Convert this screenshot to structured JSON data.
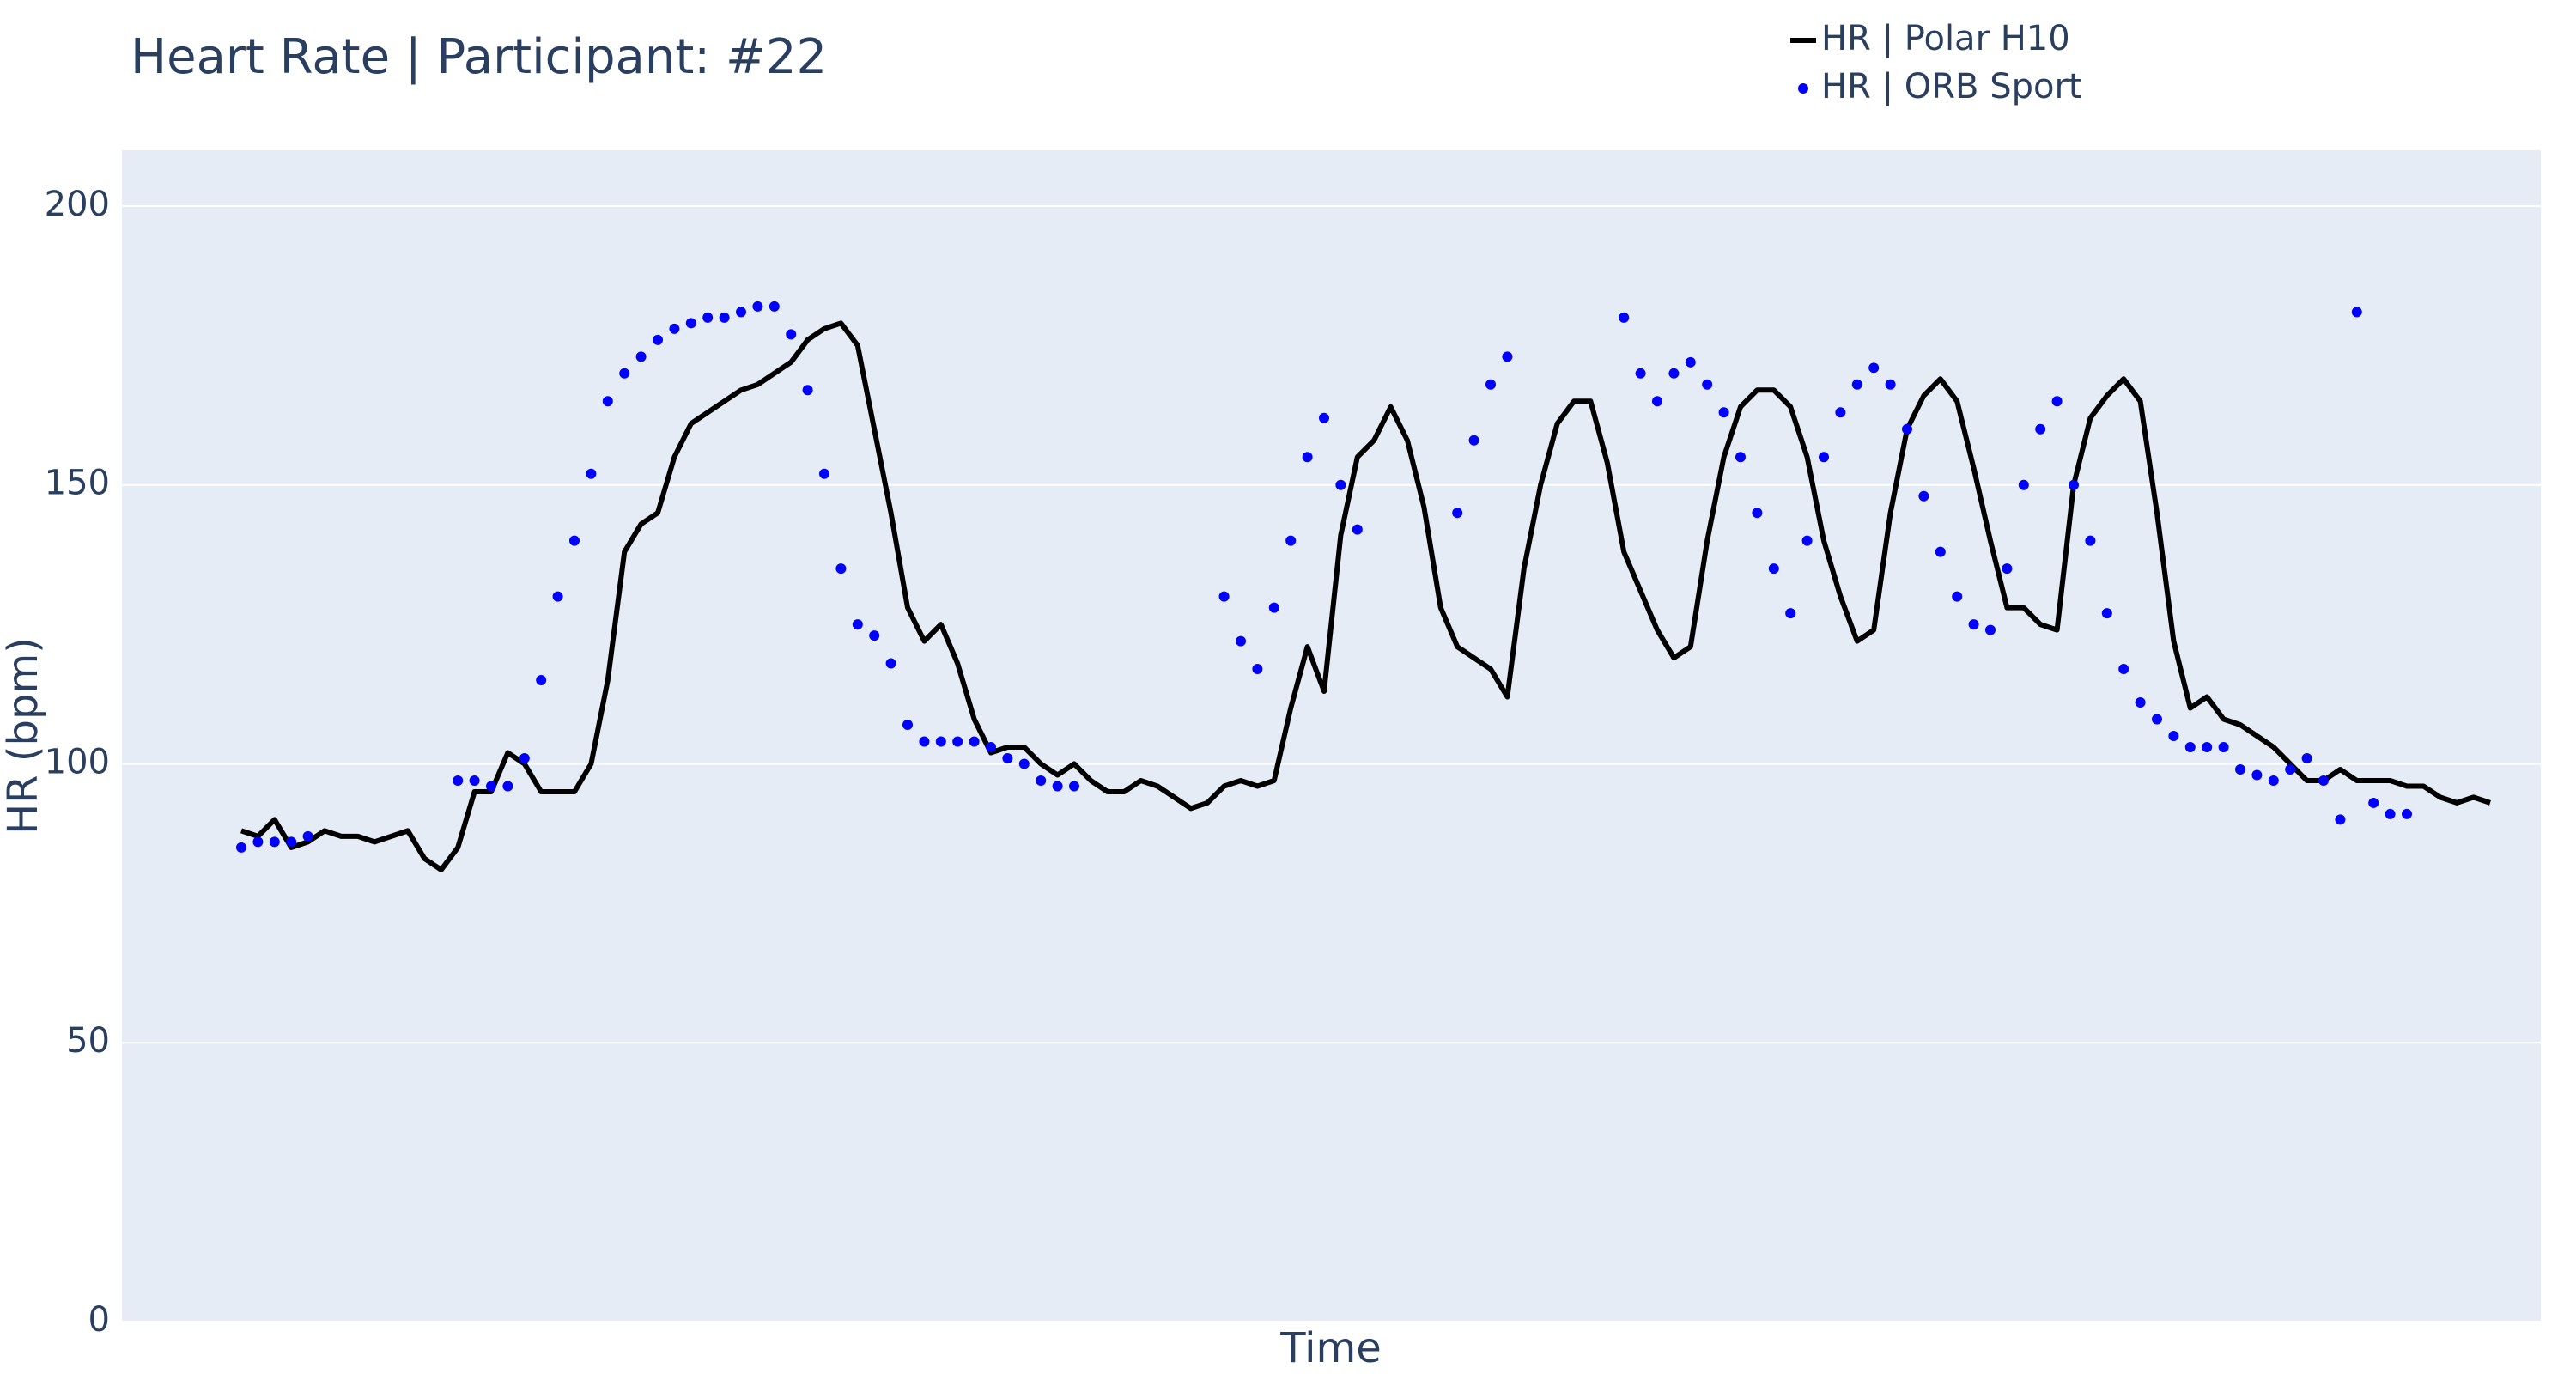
{
  "chart_data": {
    "type": "line",
    "title": "Heart Rate | Participant: #22",
    "x_label": "Time",
    "y_label": "HR (bpm)",
    "ylim": [
      0,
      210
    ],
    "yticks": [
      0,
      50,
      100,
      150,
      200
    ],
    "grid": true,
    "series": [
      {
        "name": "HR | Polar H10",
        "color": "#000000",
        "mode": "lines",
        "values": [
          88,
          87,
          90,
          85,
          86,
          88,
          87,
          87,
          86,
          87,
          88,
          83,
          81,
          85,
          95,
          95,
          102,
          100,
          95,
          95,
          95,
          100,
          115,
          138,
          143,
          145,
          155,
          161,
          163,
          165,
          167,
          168,
          170,
          172,
          176,
          178,
          179,
          175,
          160,
          145,
          128,
          122,
          125,
          118,
          108,
          102,
          103,
          103,
          100,
          98,
          100,
          97,
          95,
          95,
          97,
          96,
          94,
          92,
          93,
          96,
          97,
          96,
          97,
          110,
          121,
          113,
          141,
          155,
          158,
          164,
          158,
          146,
          128,
          121,
          119,
          117,
          112,
          135,
          150,
          161,
          165,
          165,
          154,
          138,
          131,
          124,
          119,
          121,
          140,
          155,
          164,
          167,
          167,
          164,
          155,
          140,
          130,
          122,
          124,
          145,
          160,
          166,
          169,
          165,
          153,
          140,
          128,
          128,
          125,
          124,
          150,
          162,
          166,
          169,
          165,
          145,
          122,
          110,
          112,
          108,
          107,
          105,
          103,
          100,
          97,
          97,
          99,
          97,
          97,
          97,
          96,
          96,
          94,
          93,
          94,
          93
        ]
      },
      {
        "name": "HR | ORB Sport",
        "color": "#0000ff",
        "mode": "markers",
        "values": [
          85,
          86,
          86,
          86,
          87,
          null,
          null,
          null,
          null,
          null,
          null,
          null,
          null,
          97,
          97,
          96,
          96,
          101,
          115,
          130,
          140,
          152,
          165,
          170,
          173,
          176,
          178,
          179,
          180,
          180,
          181,
          182,
          182,
          177,
          167,
          152,
          135,
          125,
          123,
          118,
          107,
          104,
          104,
          104,
          104,
          103,
          101,
          100,
          97,
          96,
          96,
          null,
          null,
          null,
          null,
          null,
          null,
          null,
          null,
          130,
          122,
          117,
          128,
          140,
          155,
          162,
          150,
          142,
          null,
          null,
          null,
          null,
          null,
          145,
          158,
          168,
          173,
          null,
          null,
          null,
          null,
          null,
          null,
          180,
          170,
          165,
          170,
          172,
          168,
          163,
          155,
          145,
          135,
          127,
          140,
          155,
          163,
          168,
          171,
          168,
          160,
          148,
          138,
          130,
          125,
          124,
          135,
          150,
          160,
          165,
          150,
          140,
          127,
          117,
          111,
          108,
          105,
          103,
          103,
          103,
          99,
          98,
          97,
          99,
          101,
          97,
          90,
          181,
          93,
          91,
          91,
          null,
          null,
          null,
          null,
          null
        ]
      }
    ],
    "legend": "top-right"
  }
}
